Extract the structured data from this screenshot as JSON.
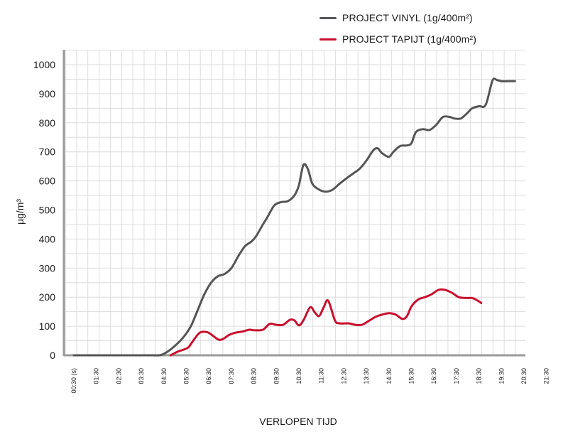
{
  "chart_data": {
    "type": "line",
    "title": "",
    "xlabel": "VERLOPEN TIJD",
    "ylabel": "µg/m³",
    "ylim": [
      0,
      1000
    ],
    "yticks": [
      0,
      100,
      200,
      300,
      400,
      500,
      600,
      700,
      800,
      900,
      1000
    ],
    "xticks": [
      "00:30 (s)",
      "01:30",
      "02:30",
      "03:30",
      "04:30",
      "05:30",
      "06:30",
      "07:30",
      "08:30",
      "09:30",
      "10:30",
      "11:30",
      "12:30",
      "13:30",
      "14:30",
      "15:30",
      "16:30",
      "17:30",
      "18:30",
      "19:30",
      "20:30",
      "21:30"
    ],
    "grid": true,
    "legend_position": "top-right",
    "x_unit": "hours elapsed",
    "series": [
      {
        "name": "PROJECT VINYL (1g/400m²)",
        "color": "#555557",
        "points": [
          [
            0,
            0
          ],
          [
            1,
            0
          ],
          [
            2,
            0
          ],
          [
            3,
            0
          ],
          [
            3.5,
            0
          ],
          [
            3.8,
            0
          ],
          [
            4.0,
            5
          ],
          [
            4.3,
            20
          ],
          [
            4.6,
            40
          ],
          [
            4.9,
            65
          ],
          [
            5.2,
            100
          ],
          [
            5.5,
            155
          ],
          [
            5.8,
            210
          ],
          [
            6.1,
            250
          ],
          [
            6.4,
            272
          ],
          [
            6.7,
            280
          ],
          [
            7.0,
            300
          ],
          [
            7.3,
            340
          ],
          [
            7.6,
            375
          ],
          [
            7.9,
            392
          ],
          [
            8.1,
            410
          ],
          [
            8.4,
            450
          ],
          [
            8.6,
            475
          ],
          [
            8.9,
            515
          ],
          [
            9.2,
            527
          ],
          [
            9.5,
            530
          ],
          [
            9.8,
            550
          ],
          [
            10.0,
            585
          ],
          [
            10.2,
            655
          ],
          [
            10.4,
            640
          ],
          [
            10.6,
            590
          ],
          [
            10.9,
            570
          ],
          [
            11.2,
            563
          ],
          [
            11.5,
            570
          ],
          [
            11.8,
            590
          ],
          [
            12.1,
            608
          ],
          [
            12.4,
            625
          ],
          [
            12.7,
            642
          ],
          [
            13.0,
            670
          ],
          [
            13.3,
            705
          ],
          [
            13.5,
            712
          ],
          [
            13.7,
            695
          ],
          [
            14.0,
            683
          ],
          [
            14.2,
            700
          ],
          [
            14.5,
            720
          ],
          [
            14.8,
            722
          ],
          [
            15.0,
            730
          ],
          [
            15.2,
            768
          ],
          [
            15.5,
            778
          ],
          [
            15.8,
            775
          ],
          [
            16.1,
            793
          ],
          [
            16.4,
            820
          ],
          [
            16.7,
            820
          ],
          [
            16.9,
            815
          ],
          [
            17.2,
            815
          ],
          [
            17.5,
            835
          ],
          [
            17.7,
            850
          ],
          [
            18.0,
            857
          ],
          [
            18.3,
            862
          ],
          [
            18.6,
            945
          ],
          [
            18.8,
            947
          ],
          [
            19.0,
            943
          ],
          [
            19.3,
            943
          ],
          [
            19.6,
            943
          ]
        ]
      },
      {
        "name": "PROJECT TAPIJT (1g/400m²)",
        "color": "#c8102e",
        "points": [
          [
            4.3,
            0
          ],
          [
            4.6,
            12
          ],
          [
            4.9,
            20
          ],
          [
            5.1,
            28
          ],
          [
            5.3,
            50
          ],
          [
            5.6,
            78
          ],
          [
            5.9,
            80
          ],
          [
            6.1,
            72
          ],
          [
            6.4,
            55
          ],
          [
            6.6,
            55
          ],
          [
            6.9,
            70
          ],
          [
            7.2,
            78
          ],
          [
            7.5,
            82
          ],
          [
            7.8,
            88
          ],
          [
            8.0,
            86
          ],
          [
            8.4,
            88
          ],
          [
            8.7,
            108
          ],
          [
            9.0,
            105
          ],
          [
            9.3,
            105
          ],
          [
            9.6,
            122
          ],
          [
            9.8,
            120
          ],
          [
            10.0,
            103
          ],
          [
            10.2,
            120
          ],
          [
            10.5,
            165
          ],
          [
            10.7,
            148
          ],
          [
            10.9,
            135
          ],
          [
            11.1,
            165
          ],
          [
            11.3,
            188
          ],
          [
            11.6,
            120
          ],
          [
            11.8,
            110
          ],
          [
            12.2,
            110
          ],
          [
            12.5,
            105
          ],
          [
            12.8,
            105
          ],
          [
            13.1,
            118
          ],
          [
            13.4,
            132
          ],
          [
            13.7,
            140
          ],
          [
            14.0,
            145
          ],
          [
            14.3,
            140
          ],
          [
            14.6,
            125
          ],
          [
            14.8,
            135
          ],
          [
            15.0,
            168
          ],
          [
            15.3,
            192
          ],
          [
            15.6,
            200
          ],
          [
            15.9,
            210
          ],
          [
            16.2,
            225
          ],
          [
            16.5,
            225
          ],
          [
            16.8,
            215
          ],
          [
            17.1,
            200
          ],
          [
            17.4,
            197
          ],
          [
            17.7,
            197
          ],
          [
            17.9,
            190
          ],
          [
            18.1,
            180
          ]
        ]
      }
    ]
  }
}
